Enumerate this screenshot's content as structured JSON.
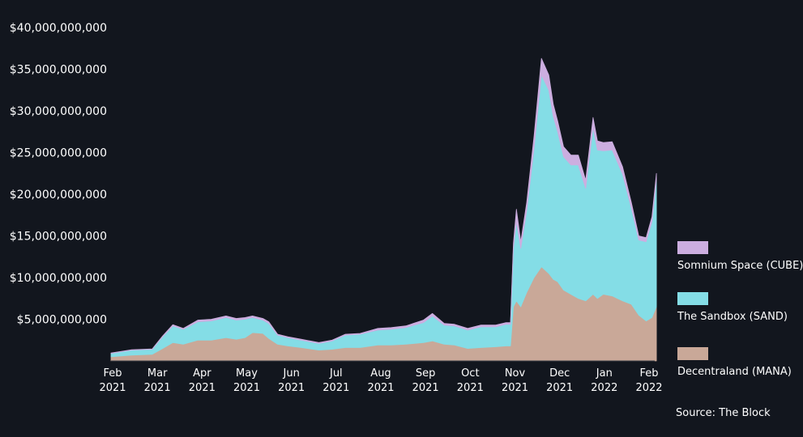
{
  "chart_data": {
    "type": "area",
    "stacked": true,
    "title": "",
    "xlabel": "",
    "ylabel": "",
    "ylim": [
      0,
      40000000000
    ],
    "yticks": [
      5000000000,
      10000000000,
      15000000000,
      20000000000,
      25000000000,
      30000000000,
      35000000000,
      40000000000
    ],
    "ytick_labels": [
      "$5,000,000,000",
      "$10,000,000,000",
      "$15,000,000,000",
      "$20,000,000,000",
      "$25,000,000,000",
      "$30,000,000,000",
      "$35,000,000,000",
      "$40,000,000,000"
    ],
    "xtick_labels": [
      {
        "month": "Feb",
        "year": "2021"
      },
      {
        "month": "Mar",
        "year": "2021"
      },
      {
        "month": "Apr",
        "year": "2021"
      },
      {
        "month": "May",
        "year": "2021"
      },
      {
        "month": "Jun",
        "year": "2021"
      },
      {
        "month": "Jul",
        "year": "2021"
      },
      {
        "month": "Aug",
        "year": "2021"
      },
      {
        "month": "Sep",
        "year": "2021"
      },
      {
        "month": "Oct",
        "year": "2021"
      },
      {
        "month": "Nov",
        "year": "2021"
      },
      {
        "month": "Dec",
        "year": "2021"
      },
      {
        "month": "Jan",
        "year": "2022"
      },
      {
        "month": "Feb",
        "year": "2022"
      }
    ],
    "grid": false,
    "legend_position": "right",
    "x": [
      "2021-02-01",
      "2021-02-15",
      "2021-03-01",
      "2021-03-08",
      "2021-03-15",
      "2021-03-22",
      "2021-04-01",
      "2021-04-10",
      "2021-04-20",
      "2021-04-27",
      "2021-05-03",
      "2021-05-08",
      "2021-05-15",
      "2021-05-19",
      "2021-05-25",
      "2021-06-01",
      "2021-06-10",
      "2021-06-22",
      "2021-07-01",
      "2021-07-10",
      "2021-07-20",
      "2021-08-01",
      "2021-08-10",
      "2021-08-20",
      "2021-09-01",
      "2021-09-07",
      "2021-09-15",
      "2021-09-22",
      "2021-10-01",
      "2021-10-10",
      "2021-10-20",
      "2021-10-27",
      "2021-10-30",
      "2021-11-01",
      "2021-11-03",
      "2021-11-06",
      "2021-11-10",
      "2021-11-15",
      "2021-11-20",
      "2021-11-25",
      "2021-11-28",
      "2021-12-01",
      "2021-12-05",
      "2021-12-10",
      "2021-12-15",
      "2021-12-20",
      "2021-12-25",
      "2021-12-28",
      "2022-01-01",
      "2022-01-07",
      "2022-01-14",
      "2022-01-20",
      "2022-01-25",
      "2022-01-30",
      "2022-02-03",
      "2022-02-06"
    ],
    "series": [
      {
        "name": "Decentraland (MANA)",
        "color": "#c9a898",
        "values": [
          0.5,
          0.7,
          0.8,
          1.5,
          2.2,
          2.0,
          2.5,
          2.5,
          2.8,
          2.6,
          2.8,
          3.4,
          3.3,
          2.7,
          2.0,
          1.8,
          1.6,
          1.3,
          1.4,
          1.6,
          1.6,
          1.9,
          1.9,
          2.0,
          2.2,
          2.4,
          2.0,
          1.9,
          1.5,
          1.6,
          1.7,
          1.8,
          1.8,
          6.5,
          7.2,
          6.5,
          8.2,
          10.0,
          11.3,
          10.5,
          9.8,
          9.5,
          8.5,
          8.0,
          7.5,
          7.2,
          8.0,
          7.5,
          8.0,
          7.8,
          7.2,
          6.8,
          5.5,
          4.8,
          5.2,
          6.5
        ]
      },
      {
        "name": "The Sandbox (SAND)",
        "color": "#84dde6",
        "values": [
          0.4,
          0.6,
          0.6,
          1.4,
          2.0,
          1.8,
          2.2,
          2.3,
          2.4,
          2.3,
          2.2,
          1.8,
          1.6,
          1.8,
          1.1,
          1.0,
          0.9,
          0.8,
          1.0,
          1.5,
          1.6,
          1.8,
          1.9,
          2.0,
          2.4,
          3.0,
          2.3,
          2.3,
          2.2,
          2.5,
          2.4,
          2.6,
          2.6,
          7.0,
          9.5,
          7.0,
          9.8,
          15.5,
          23.0,
          22.0,
          19.5,
          18.0,
          16.0,
          15.5,
          16.0,
          13.5,
          20.0,
          17.8,
          17.2,
          17.5,
          15.2,
          11.5,
          9.0,
          9.5,
          11.5,
          15.2
        ]
      },
      {
        "name": "Somnium Space (CUBE)",
        "color": "#ccaee0",
        "values": [
          0.05,
          0.05,
          0.05,
          0.1,
          0.15,
          0.1,
          0.2,
          0.2,
          0.2,
          0.2,
          0.2,
          0.2,
          0.2,
          0.2,
          0.1,
          0.1,
          0.1,
          0.1,
          0.1,
          0.1,
          0.1,
          0.2,
          0.2,
          0.2,
          0.3,
          0.3,
          0.2,
          0.2,
          0.2,
          0.2,
          0.2,
          0.2,
          0.2,
          0.6,
          1.5,
          0.8,
          1.0,
          1.5,
          2.0,
          1.8,
          1.5,
          1.3,
          1.2,
          1.2,
          1.2,
          1.0,
          1.2,
          1.1,
          1.0,
          1.0,
          0.9,
          0.7,
          0.5,
          0.5,
          0.6,
          0.8
        ]
      }
    ]
  },
  "value_scale": 1000000000,
  "source": "Source: The Block"
}
